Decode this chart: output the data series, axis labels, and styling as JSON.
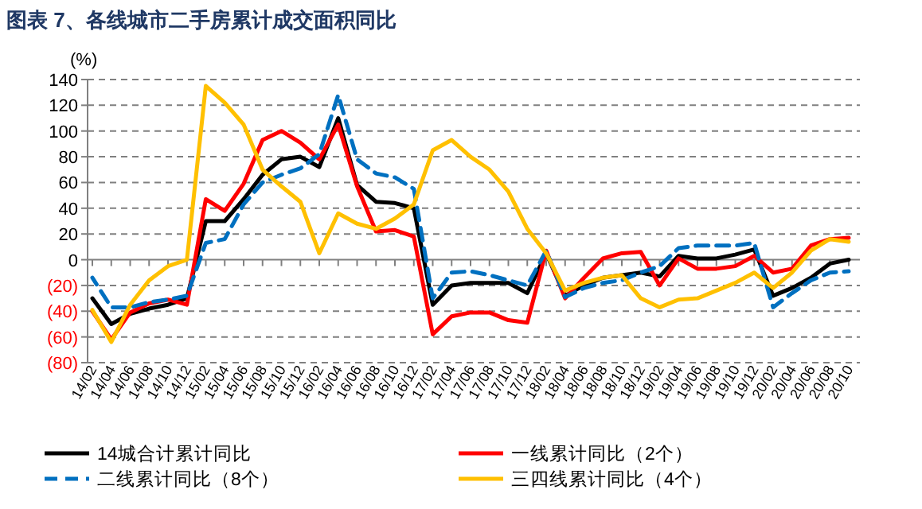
{
  "chart_data": {
    "type": "line",
    "title": "图表 7、各线城市二手房累计成交面积同比",
    "ylabel": "(%)",
    "categories": [
      "14/02",
      "14/04",
      "14/06",
      "14/08",
      "14/10",
      "14/12",
      "15/02",
      "15/04",
      "15/06",
      "15/08",
      "15/10",
      "15/12",
      "16/02",
      "16/04",
      "16/06",
      "16/08",
      "16/10",
      "16/12",
      "17/02",
      "17/04",
      "17/06",
      "17/08",
      "17/10",
      "17/12",
      "18/02",
      "18/04",
      "18/06",
      "18/08",
      "18/10",
      "18/12",
      "19/02",
      "19/04",
      "19/06",
      "19/08",
      "19/10",
      "19/12",
      "20/02",
      "20/04",
      "20/06",
      "20/08",
      "20/10"
    ],
    "ylim": [
      -80,
      140
    ],
    "yticks": [
      {
        "value": -80,
        "label": "(80)"
      },
      {
        "value": -60,
        "label": "(60)"
      },
      {
        "value": -40,
        "label": "(40)"
      },
      {
        "value": -20,
        "label": "(20)"
      },
      0,
      20,
      40,
      60,
      80,
      100,
      120,
      140
    ],
    "grid": "y",
    "legend": "bottom",
    "marker": "none",
    "series": [
      {
        "name": "14城合计累计同比",
        "color": "#000000",
        "line_style": "solid",
        "values": [
          -30,
          -50,
          -42,
          -38,
          -35,
          -30,
          30,
          30,
          47,
          66,
          78,
          80,
          72,
          110,
          58,
          45,
          44,
          40,
          -35,
          -20,
          -18,
          -18,
          -18,
          -26,
          5,
          -28,
          -20,
          -14,
          -12,
          -10,
          -13,
          3,
          1,
          1,
          4,
          8,
          -28,
          -22,
          -14,
          -3,
          0
        ]
      },
      {
        "name": "一线累计同比（2个）",
        "color": "#ff0000",
        "line_style": "solid",
        "values": [
          -40,
          -62,
          -41,
          -34,
          -31,
          -35,
          47,
          38,
          59,
          93,
          100,
          91,
          78,
          105,
          57,
          22,
          23,
          18,
          -58,
          -44,
          -41,
          -41,
          -47,
          -49,
          7,
          -30,
          -14,
          1,
          5,
          6,
          -20,
          1,
          -7,
          -7,
          -5,
          3,
          -10,
          -7,
          11,
          16,
          17
        ]
      },
      {
        "name": "二线累计同比（8个）",
        "color": "#0070c0",
        "line_style": "dashed",
        "values": [
          -14,
          -37,
          -37,
          -33,
          -31,
          -28,
          13,
          16,
          43,
          60,
          66,
          71,
          82,
          128,
          78,
          67,
          64,
          55,
          -30,
          -10,
          -9,
          -12,
          -16,
          -20,
          7,
          -29,
          -22,
          -18,
          -16,
          -10,
          -5,
          9,
          11,
          11,
          11,
          13,
          -37,
          -26,
          -16,
          -10,
          -9
        ]
      },
      {
        "name": "三四线累计同比（4个）",
        "color": "#ffc000",
        "line_style": "solid",
        "values": [
          -39,
          -64,
          -35,
          -16,
          -5,
          0,
          135,
          122,
          105,
          70,
          57,
          45,
          5,
          36,
          28,
          24,
          32,
          43,
          85,
          93,
          80,
          70,
          53,
          24,
          5,
          -24,
          -18,
          -14,
          -12,
          -30,
          -37,
          -31,
          -30,
          -24,
          -18,
          -10,
          -22,
          -10,
          7,
          16,
          14
        ]
      }
    ]
  }
}
